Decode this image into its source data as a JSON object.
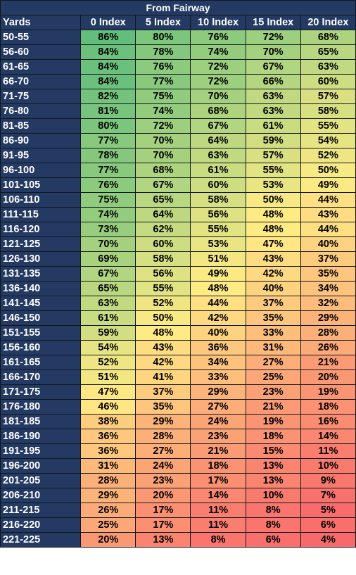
{
  "title": "From Fairway",
  "columns": [
    "Yards",
    "0 Index",
    "5 Index",
    "10 Index",
    "15 Index",
    "20 Index"
  ],
  "rows": [
    [
      "50-55",
      "86%",
      "80%",
      "76%",
      "72%",
      "68%"
    ],
    [
      "56-60",
      "84%",
      "78%",
      "74%",
      "70%",
      "65%"
    ],
    [
      "61-65",
      "84%",
      "76%",
      "72%",
      "67%",
      "63%"
    ],
    [
      "66-70",
      "84%",
      "77%",
      "72%",
      "66%",
      "60%"
    ],
    [
      "71-75",
      "82%",
      "75%",
      "70%",
      "63%",
      "57%"
    ],
    [
      "76-80",
      "81%",
      "74%",
      "68%",
      "63%",
      "58%"
    ],
    [
      "81-85",
      "80%",
      "72%",
      "67%",
      "61%",
      "55%"
    ],
    [
      "86-90",
      "77%",
      "70%",
      "64%",
      "59%",
      "54%"
    ],
    [
      "91-95",
      "78%",
      "70%",
      "63%",
      "57%",
      "52%"
    ],
    [
      "96-100",
      "77%",
      "68%",
      "61%",
      "55%",
      "50%"
    ],
    [
      "101-105",
      "76%",
      "67%",
      "60%",
      "53%",
      "49%"
    ],
    [
      "106-110",
      "75%",
      "65%",
      "58%",
      "50%",
      "44%"
    ],
    [
      "111-115",
      "74%",
      "64%",
      "56%",
      "48%",
      "43%"
    ],
    [
      "116-120",
      "73%",
      "62%",
      "55%",
      "48%",
      "44%"
    ],
    [
      "121-125",
      "70%",
      "60%",
      "53%",
      "47%",
      "40%"
    ],
    [
      "126-130",
      "69%",
      "58%",
      "51%",
      "43%",
      "37%"
    ],
    [
      "131-135",
      "67%",
      "56%",
      "49%",
      "42%",
      "35%"
    ],
    [
      "136-140",
      "65%",
      "55%",
      "48%",
      "40%",
      "34%"
    ],
    [
      "141-145",
      "63%",
      "52%",
      "44%",
      "37%",
      "32%"
    ],
    [
      "146-150",
      "61%",
      "50%",
      "42%",
      "35%",
      "29%"
    ],
    [
      "151-155",
      "59%",
      "48%",
      "40%",
      "33%",
      "28%"
    ],
    [
      "156-160",
      "54%",
      "43%",
      "36%",
      "31%",
      "26%"
    ],
    [
      "161-165",
      "52%",
      "42%",
      "34%",
      "27%",
      "21%"
    ],
    [
      "166-170",
      "51%",
      "41%",
      "33%",
      "25%",
      "20%"
    ],
    [
      "171-175",
      "47%",
      "37%",
      "29%",
      "23%",
      "19%"
    ],
    [
      "176-180",
      "46%",
      "35%",
      "27%",
      "21%",
      "18%"
    ],
    [
      "181-185",
      "38%",
      "29%",
      "24%",
      "19%",
      "16%"
    ],
    [
      "186-190",
      "36%",
      "28%",
      "23%",
      "18%",
      "14%"
    ],
    [
      "191-195",
      "36%",
      "27%",
      "21%",
      "15%",
      "11%"
    ],
    [
      "196-200",
      "31%",
      "24%",
      "18%",
      "13%",
      "10%"
    ],
    [
      "201-205",
      "28%",
      "23%",
      "17%",
      "13%",
      "9%"
    ],
    [
      "206-210",
      "29%",
      "20%",
      "14%",
      "10%",
      "7%"
    ],
    [
      "211-215",
      "26%",
      "17%",
      "11%",
      "8%",
      "5%"
    ],
    [
      "216-220",
      "25%",
      "17%",
      "11%",
      "8%",
      "6%"
    ],
    [
      "221-225",
      "20%",
      "13%",
      "8%",
      "6%",
      "4%"
    ]
  ],
  "colors": {
    "header_bg": "#243a63",
    "header_text": "#ffffff",
    "grid": "#101820",
    "scale_high": "#63be7b",
    "scale_mid": "#ffeb84",
    "scale_low": "#f8696b"
  }
}
